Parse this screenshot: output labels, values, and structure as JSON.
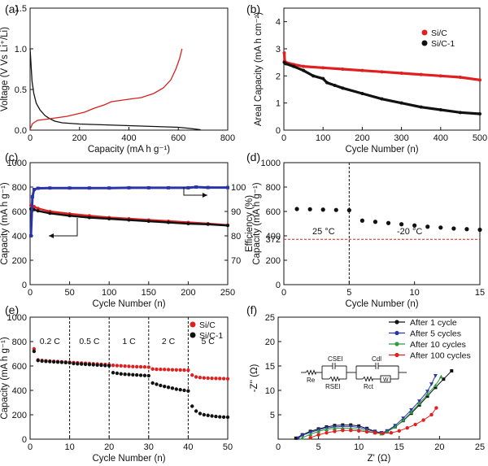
{
  "panels": {
    "a": {
      "letter": "(a)"
    },
    "b": {
      "letter": "(b)"
    },
    "c": {
      "letter": "(c)"
    },
    "d": {
      "letter": "(d)"
    },
    "e": {
      "letter": "(e)"
    },
    "f": {
      "letter": "(f)"
    }
  },
  "chart_data": [
    {
      "id": "a",
      "type": "line",
      "title": "",
      "xlabel": "Capacity (mA h g⁻¹)",
      "ylabel": "Voltage (V Vs Li⁺/Li)",
      "xlim": [
        0,
        800
      ],
      "ylim": [
        0,
        1.5
      ],
      "xticks": [
        0,
        200,
        400,
        600,
        800
      ],
      "yticks": [
        0.0,
        0.5,
        1.0,
        1.5
      ],
      "ytick_labels": [
        "0.0",
        "0.5",
        "1.0",
        "1.5"
      ],
      "colors": [
        "#111111",
        "#d62020"
      ],
      "series": [
        {
          "name": "discharge",
          "color": "#111111",
          "x": [
            0,
            3,
            8,
            15,
            25,
            40,
            60,
            80,
            100,
            130,
            200,
            300,
            400,
            500,
            600,
            650,
            690
          ],
          "y": [
            1.0,
            0.85,
            0.6,
            0.45,
            0.33,
            0.25,
            0.18,
            0.14,
            0.11,
            0.09,
            0.075,
            0.065,
            0.055,
            0.045,
            0.035,
            0.02,
            0.005
          ]
        },
        {
          "name": "charge",
          "color": "#d62020",
          "x": [
            0,
            10,
            30,
            80,
            150,
            220,
            260,
            300,
            330,
            400,
            450,
            500,
            540,
            570,
            590,
            605,
            615
          ],
          "y": [
            0.01,
            0.08,
            0.12,
            0.14,
            0.17,
            0.22,
            0.27,
            0.31,
            0.35,
            0.38,
            0.4,
            0.45,
            0.52,
            0.62,
            0.75,
            0.88,
            1.0
          ]
        }
      ]
    },
    {
      "id": "b",
      "type": "scatter",
      "title": "",
      "xlabel": "Cycle Number (n)",
      "ylabel": "Areal Capacity (mA h cm⁻²)",
      "xlim": [
        0,
        500
      ],
      "ylim": [
        0,
        4.5
      ],
      "xticks": [
        0,
        100,
        200,
        300,
        400,
        500
      ],
      "yticks": [
        0,
        1,
        2,
        3,
        4
      ],
      "legend": [
        "Si/C",
        "Si/C-1"
      ],
      "legend_position": "top-right",
      "series": [
        {
          "name": "Si/C",
          "color": "#e02020",
          "x": [
            1,
            2,
            5,
            25,
            50,
            100,
            150,
            200,
            250,
            300,
            350,
            400,
            450,
            500
          ],
          "y": [
            2.85,
            2.55,
            2.5,
            2.42,
            2.35,
            2.3,
            2.25,
            2.2,
            2.15,
            2.1,
            2.05,
            2.0,
            1.95,
            1.85
          ]
        },
        {
          "name": "Si/C-1",
          "color": "#111111",
          "x": [
            1,
            5,
            25,
            50,
            75,
            100,
            110,
            130,
            150,
            200,
            250,
            300,
            350,
            400,
            450,
            500
          ],
          "y": [
            2.5,
            2.45,
            2.35,
            2.2,
            2.0,
            1.9,
            1.75,
            1.65,
            1.55,
            1.35,
            1.15,
            1.0,
            0.85,
            0.75,
            0.65,
            0.6
          ]
        }
      ]
    },
    {
      "id": "c",
      "type": "scatter",
      "title": "",
      "xlabel": "Cycle Number (n)",
      "ylabel": "Capacity (mA h g⁻¹)",
      "ylabel2": "Efficiency (%)",
      "xlim": [
        0,
        250
      ],
      "ylim": [
        0,
        1000
      ],
      "ylim2": [
        60,
        110
      ],
      "xticks": [
        0,
        50,
        100,
        150,
        200,
        250
      ],
      "yticks": [
        0,
        200,
        400,
        600,
        800,
        1000
      ],
      "yticks2": [
        70,
        80,
        90,
        100
      ],
      "series": [
        {
          "name": "capacity red",
          "color": "#e02020",
          "x": [
            1,
            5,
            10,
            25,
            50,
            75,
            100,
            125,
            150,
            175,
            200,
            225,
            250
          ],
          "y": [
            650,
            640,
            625,
            600,
            580,
            565,
            550,
            540,
            530,
            520,
            510,
            500,
            488
          ]
        },
        {
          "name": "capacity black",
          "color": "#111111",
          "x": [
            1,
            5,
            10,
            25,
            50,
            75,
            100,
            125,
            150,
            175,
            200,
            225,
            250
          ],
          "y": [
            620,
            615,
            605,
            585,
            565,
            550,
            540,
            530,
            520,
            510,
            500,
            495,
            485
          ]
        },
        {
          "name": "efficiency",
          "color": "#2b35a8",
          "axis": "right",
          "x": [
            1,
            3,
            5,
            10,
            25,
            50,
            75,
            100,
            125,
            150,
            175,
            200,
            210,
            225,
            250
          ],
          "y": [
            80,
            96,
            99,
            99.5,
            99.6,
            99.6,
            99.6,
            99.6,
            99.7,
            99.7,
            99.7,
            99.7,
            100,
            99.8,
            99.8
          ]
        }
      ]
    },
    {
      "id": "d",
      "type": "scatter",
      "title": "",
      "xlabel": "Cycle Number (n)",
      "ylabel": "Capacity (mA h g⁻¹)",
      "xlim": [
        0,
        15
      ],
      "ylim": [
        0,
        1000
      ],
      "xticks": [
        0,
        5,
        10,
        15
      ],
      "yticks": [
        0,
        200,
        400,
        600,
        800,
        1000
      ],
      "extra_ytick": 372,
      "annotations": [
        "25 °C",
        "-20 °C"
      ],
      "divider_x": 5,
      "reference_y": 372,
      "series": [
        {
          "name": "capacity",
          "color": "#111111",
          "x": [
            1,
            2,
            3,
            4,
            5,
            6,
            7,
            8,
            9,
            10,
            11,
            12,
            13,
            14,
            15
          ],
          "y": [
            620,
            618,
            615,
            612,
            610,
            525,
            515,
            505,
            495,
            485,
            475,
            468,
            460,
            455,
            450
          ]
        }
      ]
    },
    {
      "id": "e",
      "type": "scatter",
      "title": "",
      "xlabel": "Cycle Number (n)",
      "ylabel": "Capacity (mA h g⁻¹)",
      "xlim": [
        0,
        50
      ],
      "ylim": [
        0,
        1000
      ],
      "xticks": [
        0,
        10,
        20,
        30,
        40,
        50
      ],
      "yticks": [
        0,
        200,
        400,
        600,
        800,
        1000
      ],
      "rate_labels": [
        "0.2 C",
        "0.5 C",
        "1 C",
        "2 C",
        "5 C"
      ],
      "dividers": [
        10,
        20,
        30,
        40
      ],
      "legend": [
        "Si/C",
        "Si/C-1"
      ],
      "legend_position": "top-right",
      "series": [
        {
          "name": "Si/C",
          "color": "#e02020",
          "x": [
            1,
            2,
            3,
            4,
            5,
            6,
            7,
            8,
            9,
            10,
            11,
            12,
            13,
            14,
            15,
            16,
            17,
            18,
            19,
            20,
            21,
            22,
            23,
            24,
            25,
            26,
            27,
            28,
            29,
            30,
            31,
            32,
            33,
            34,
            35,
            36,
            37,
            38,
            39,
            40,
            41,
            42,
            43,
            44,
            45,
            46,
            47,
            48,
            49,
            50
          ],
          "y": [
            740,
            650,
            645,
            642,
            640,
            638,
            636,
            634,
            632,
            630,
            628,
            626,
            624,
            622,
            620,
            618,
            616,
            614,
            612,
            610,
            605,
            603,
            601,
            599,
            597,
            595,
            594,
            593,
            592,
            590,
            575,
            573,
            572,
            571,
            570,
            569,
            568,
            567,
            566,
            565,
            525,
            510,
            505,
            502,
            500,
            499,
            498,
            497,
            496,
            495
          ]
        },
        {
          "name": "Si/C-1",
          "color": "#111111",
          "x": [
            1,
            2,
            3,
            4,
            5,
            6,
            7,
            8,
            9,
            10,
            11,
            12,
            13,
            14,
            15,
            16,
            17,
            18,
            19,
            20,
            21,
            22,
            23,
            24,
            25,
            26,
            27,
            28,
            29,
            30,
            31,
            32,
            33,
            34,
            35,
            36,
            37,
            38,
            39,
            40,
            41,
            42,
            43,
            44,
            45,
            46,
            47,
            48,
            49,
            50
          ],
          "y": [
            720,
            645,
            640,
            638,
            636,
            634,
            632,
            630,
            628,
            626,
            620,
            618,
            616,
            614,
            612,
            610,
            608,
            606,
            604,
            602,
            545,
            540,
            535,
            532,
            530,
            528,
            526,
            524,
            522,
            520,
            460,
            450,
            440,
            432,
            425,
            418,
            410,
            405,
            400,
            395,
            270,
            230,
            210,
            200,
            195,
            190,
            186,
            183,
            181,
            180
          ]
        }
      ]
    },
    {
      "id": "f",
      "type": "line",
      "title": "",
      "xlabel": "Z' (Ω)",
      "ylabel": "-Z'' (Ω)",
      "xlim": [
        0,
        25
      ],
      "ylim": [
        0,
        25
      ],
      "xticks": [
        0,
        5,
        10,
        15,
        20,
        25
      ],
      "yticks": [
        5,
        10,
        15,
        20,
        25
      ],
      "legend": [
        "After 1 cycle",
        "After 5 cycles",
        "After 10 cycles",
        "After 100 cycles"
      ],
      "legend_position": "top-right",
      "circuit_labels": {
        "re": "Re",
        "csei": "CSEI",
        "rsei": "RSEI",
        "cdl": "Cdl",
        "rct": "Rct",
        "w": "W"
      },
      "series": [
        {
          "name": "After 1 cycle",
          "color": "#111111",
          "marker": "square",
          "x": [
            2.2,
            3,
            4,
            5,
            6,
            7,
            8,
            9,
            10,
            11,
            12,
            12.8,
            13.5,
            14.5,
            15.5,
            16.5,
            17.5,
            18.5,
            19.5,
            20.5,
            21.5
          ],
          "y": [
            0.2,
            0.9,
            1.6,
            2.1,
            2.5,
            2.8,
            2.9,
            2.9,
            2.7,
            2.2,
            1.6,
            1.3,
            1.6,
            2.5,
            3.8,
            5.3,
            7.0,
            8.8,
            10.6,
            12.3,
            14.0
          ]
        },
        {
          "name": "After 5 cycles",
          "color": "#2b35a8",
          "marker": "triangle-down",
          "x": [
            2.5,
            3,
            4,
            5,
            6,
            7,
            8,
            9,
            10,
            11,
            12,
            12.8,
            13.5,
            14.5,
            15.5,
            16.5,
            17.5,
            18.5,
            19.0,
            19.5
          ],
          "y": [
            0.2,
            0.8,
            1.4,
            1.9,
            2.3,
            2.5,
            2.6,
            2.6,
            2.4,
            2.0,
            1.5,
            1.3,
            1.7,
            2.8,
            4.3,
            6.0,
            7.8,
            9.8,
            11.3,
            13.0
          ]
        },
        {
          "name": "After 10 cycles",
          "color": "#2a9a40",
          "marker": "triangle-up",
          "x": [
            3,
            4,
            5,
            6,
            7,
            8,
            9,
            10,
            11,
            12,
            12.8,
            13.5,
            14.5,
            15.5,
            16.5,
            17.5,
            18.5,
            19.5,
            20.2
          ],
          "y": [
            0.3,
            1.0,
            1.6,
            2.0,
            2.2,
            2.3,
            2.2,
            2.0,
            1.7,
            1.3,
            1.1,
            1.5,
            2.5,
            3.9,
            5.5,
            7.3,
            9.2,
            11.0,
            12.8
          ]
        },
        {
          "name": "After 100 cycles",
          "color": "#e02020",
          "marker": "circle",
          "x": [
            4,
            5,
            6,
            7,
            8,
            9,
            10,
            11,
            12,
            13,
            14,
            15,
            16,
            17,
            18,
            19,
            19.6
          ],
          "y": [
            0.3,
            0.9,
            1.3,
            1.6,
            1.8,
            1.8,
            1.7,
            1.5,
            1.3,
            1.2,
            1.3,
            1.7,
            2.3,
            3.0,
            3.9,
            5.0,
            6.4
          ]
        }
      ]
    }
  ]
}
